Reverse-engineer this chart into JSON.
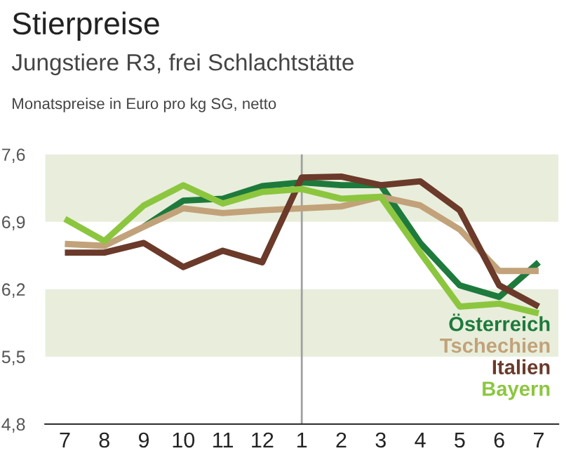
{
  "chart_data": {
    "type": "line",
    "title": "Stierpreise",
    "subtitle": "Jungstiere R3, frei Schlachtstätte",
    "ylabel": "Monatspreise in Euro pro kg SG, netto",
    "categories": [
      "7",
      "8",
      "9",
      "10",
      "11",
      "12",
      "1",
      "2",
      "3",
      "4",
      "5",
      "6",
      "7"
    ],
    "series": [
      {
        "name": "Österreich",
        "color": "#1e7a3c",
        "values": [
          null,
          null,
          6.85,
          7.12,
          7.14,
          7.27,
          7.31,
          7.28,
          7.28,
          6.68,
          6.24,
          6.12,
          6.48
        ]
      },
      {
        "name": "Tschechien",
        "color": "#c2a27a",
        "values": [
          6.67,
          6.65,
          6.85,
          7.04,
          6.99,
          7.02,
          7.04,
          7.06,
          7.16,
          7.07,
          6.82,
          6.39,
          6.39
        ]
      },
      {
        "name": "Italien",
        "color": "#6b3a2a",
        "values": [
          6.58,
          6.58,
          6.68,
          6.43,
          6.6,
          6.48,
          7.36,
          7.37,
          7.28,
          7.32,
          7.02,
          6.24,
          6.02
        ]
      },
      {
        "name": "Bayern",
        "color": "#8cc63f",
        "values": [
          6.93,
          6.7,
          7.07,
          7.28,
          7.09,
          7.21,
          7.24,
          7.14,
          7.16,
          6.58,
          6.02,
          6.05,
          5.95
        ]
      }
    ],
    "ylim": [
      4.8,
      7.6
    ],
    "yticks": [
      {
        "value": 4.8,
        "label": "4,8"
      },
      {
        "value": 5.5,
        "label": "5,5"
      },
      {
        "value": 6.2,
        "label": "6,2"
      },
      {
        "value": 6.9,
        "label": "6,9"
      },
      {
        "value": 7.6,
        "label": "7,6"
      }
    ],
    "bands": [
      {
        "axis": "y",
        "from": 6.9,
        "to": 7.6,
        "color": "#e8eedb"
      },
      {
        "axis": "y",
        "from": 5.5,
        "to": 6.2,
        "color": "#e8eedb"
      }
    ],
    "ref_lines": [
      {
        "axis": "x",
        "value": "1",
        "color": "#a0a0a0"
      }
    ],
    "legend": "bottom right",
    "grid": false,
    "line_style": "solid",
    "marker": "none"
  }
}
